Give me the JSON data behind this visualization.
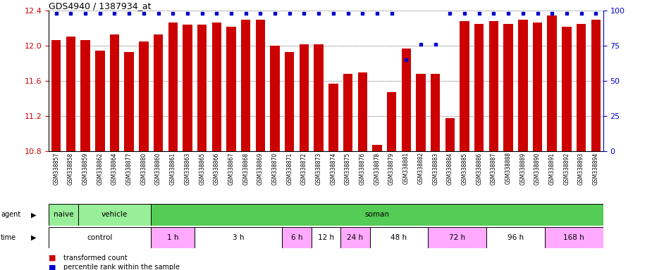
{
  "title": "GDS4940 / 1387934_at",
  "samples": [
    "GSM338857",
    "GSM338858",
    "GSM338859",
    "GSM338862",
    "GSM338864",
    "GSM338877",
    "GSM338880",
    "GSM338860",
    "GSM338861",
    "GSM338863",
    "GSM338865",
    "GSM338866",
    "GSM338867",
    "GSM338868",
    "GSM338869",
    "GSM338870",
    "GSM338871",
    "GSM338872",
    "GSM338873",
    "GSM338874",
    "GSM338875",
    "GSM338876",
    "GSM338878",
    "GSM338879",
    "GSM338881",
    "GSM338882",
    "GSM338883",
    "GSM338884",
    "GSM338885",
    "GSM338886",
    "GSM338887",
    "GSM338888",
    "GSM338889",
    "GSM338890",
    "GSM338891",
    "GSM338892",
    "GSM338893",
    "GSM338894"
  ],
  "bar_values": [
    12.07,
    12.11,
    12.07,
    11.95,
    12.13,
    11.93,
    12.05,
    12.13,
    12.27,
    12.24,
    12.24,
    12.27,
    12.22,
    12.3,
    12.3,
    12.0,
    11.93,
    12.02,
    12.02,
    11.57,
    11.68,
    11.7,
    10.87,
    11.47,
    11.97,
    11.68,
    11.68,
    11.18,
    12.28,
    12.25,
    12.28,
    12.25,
    12.3,
    12.27,
    12.35,
    12.22,
    12.25,
    12.3
  ],
  "percentile_values": [
    98,
    98,
    98,
    98,
    98,
    98,
    98,
    98,
    98,
    98,
    98,
    98,
    98,
    98,
    98,
    98,
    98,
    98,
    98,
    98,
    98,
    98,
    98,
    98,
    65,
    76,
    76,
    98,
    98,
    98,
    98,
    98,
    98,
    98,
    98,
    98,
    98,
    98
  ],
  "ylim": [
    10.8,
    12.4
  ],
  "yticks": [
    10.8,
    11.2,
    11.6,
    12.0,
    12.4
  ],
  "bar_color": "#cc0000",
  "percentile_color": "#0000cc",
  "agent_groups": [
    {
      "label": "naive",
      "start": 0,
      "end": 2,
      "color": "#99ee99"
    },
    {
      "label": "vehicle",
      "start": 2,
      "end": 7,
      "color": "#99ee99"
    },
    {
      "label": "soman",
      "start": 7,
      "end": 38,
      "color": "#55cc55"
    }
  ],
  "time_groups": [
    {
      "label": "control",
      "start": 0,
      "end": 7,
      "color": "#ffffff"
    },
    {
      "label": "1 h",
      "start": 7,
      "end": 10,
      "color": "#ffaaff"
    },
    {
      "label": "3 h",
      "start": 10,
      "end": 16,
      "color": "#ffffff"
    },
    {
      "label": "6 h",
      "start": 16,
      "end": 18,
      "color": "#ffaaff"
    },
    {
      "label": "12 h",
      "start": 18,
      "end": 20,
      "color": "#ffffff"
    },
    {
      "label": "24 h",
      "start": 20,
      "end": 22,
      "color": "#ffaaff"
    },
    {
      "label": "48 h",
      "start": 22,
      "end": 26,
      "color": "#ffffff"
    },
    {
      "label": "72 h",
      "start": 26,
      "end": 30,
      "color": "#ffaaff"
    },
    {
      "label": "96 h",
      "start": 30,
      "end": 34,
      "color": "#ffffff"
    },
    {
      "label": "168 h",
      "start": 34,
      "end": 38,
      "color": "#ffaaff"
    }
  ],
  "legend_bar_color": "#cc0000",
  "legend_percentile_color": "#0000cc",
  "bg_color": "#ffffff",
  "tick_label_color": "#cc0000",
  "right_axis_color": "#0000cc",
  "xlabels_bg": "#d8d8d8"
}
